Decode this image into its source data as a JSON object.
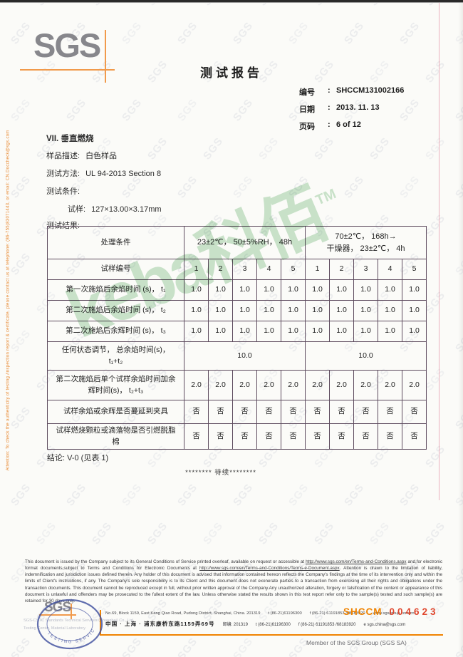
{
  "colors": {
    "sgs_logo_gray": "#87878c",
    "sgs_orange": "#f19a4b",
    "accent_orange": "#f08300",
    "serial_red": "#e0462c",
    "stamp_blue": "#3c4c9c",
    "brand_watermark_green": "#7cbe84",
    "table_border": "#5d4b5e",
    "side_note_orange": "#e88830"
  },
  "watermark": {
    "pattern": "SGS",
    "brand": "keba科佰",
    "tm": "TM"
  },
  "side_note": "Attention: To check the authenticity of testing /inspection report & certificate, please contact us at telephone: (86-755)83071443, or email: CN.Doccheck@sgs.com",
  "header": {
    "logo": "SGS",
    "title": "测试报告",
    "meta": [
      {
        "label": "编号",
        "sep": ":",
        "value": "SHCCM131002166"
      },
      {
        "label": "日期",
        "sep": ":",
        "value": "2013. 11. 13"
      },
      {
        "label": "页码",
        "sep": ":",
        "value": "6 of 12"
      }
    ]
  },
  "section": {
    "heading": "VII.  垂直燃烧",
    "lines": [
      {
        "label": "样品描述:",
        "value": "白色样品",
        "indent": false
      },
      {
        "label": "测试方法:",
        "value": "UL 94-2013 Section 8",
        "indent": false
      },
      {
        "label": "测试条件:",
        "value": "",
        "indent": false
      },
      {
        "label": "试样:",
        "value": "127×13.00×3.17mm",
        "indent": true
      },
      {
        "label": "测试结果:",
        "value": "",
        "indent": false
      }
    ]
  },
  "table": {
    "condition_header": "处理条件",
    "condition_a": "23±2℃， 50±5%RH， 48h",
    "condition_b": "70±2℃， 168h→\n干燥器， 23±2℃， 4h",
    "specimen_header": "试样编号",
    "specimen_numbers": [
      "1",
      "2",
      "3",
      "4",
      "5",
      "1",
      "2",
      "3",
      "4",
      "5"
    ],
    "rows": [
      {
        "label": "第一次施焰后余焰时间 (s)， t₁",
        "cells": [
          "1.0",
          "1.0",
          "1.0",
          "1.0",
          "1.0",
          "1.0",
          "1.0",
          "1.0",
          "1.0",
          "1.0"
        ],
        "colspan": 1
      },
      {
        "label": "第二次施焰后余焰时间 (s)， t₂",
        "cells": [
          "1.0",
          "1.0",
          "1.0",
          "1.0",
          "1.0",
          "1.0",
          "1.0",
          "1.0",
          "1.0",
          "1.0"
        ],
        "colspan": 1
      },
      {
        "label": "第二次施焰后余辉时间 (s)， t₃",
        "cells": [
          "1.0",
          "1.0",
          "1.0",
          "1.0",
          "1.0",
          "1.0",
          "1.0",
          "1.0",
          "1.0",
          "1.0"
        ],
        "colspan": 1
      },
      {
        "label": "任何状态调节， 总余焰时间(s)，\nt₁+t₂",
        "cells": [
          "10.0",
          "10.0"
        ],
        "colspan": 5
      },
      {
        "label": "第二次施焰后单个试样余焰时间加余\n辉时间(s)，  t₂+t₃",
        "cells": [
          "2.0",
          "2.0",
          "2.0",
          "2.0",
          "2.0",
          "2.0",
          "2.0",
          "2.0",
          "2.0",
          "2.0"
        ],
        "colspan": 1
      },
      {
        "label": "试样余焰或余辉是否蔓延到夹具",
        "cells": [
          "否",
          "否",
          "否",
          "否",
          "否",
          "否",
          "否",
          "否",
          "否",
          "否"
        ],
        "colspan": 1
      },
      {
        "label": "试样燃烧颗粒或滴落物是否引燃脱脂\n棉",
        "cells": [
          "否",
          "否",
          "否",
          "否",
          "否",
          "否",
          "否",
          "否",
          "否",
          "否"
        ],
        "colspan": 1
      }
    ]
  },
  "conclusion": "结论: V-0 (见表 1)",
  "to_be_continued": "******** 待续********",
  "footer": {
    "legal_segments": [
      {
        "t": "This document is issued by the Company subject to its General Conditions of Service printed overleaf, available on request or accessible at ",
        "u": false
      },
      {
        "t": "http://www.sgs.com/en/Terms-and-Conditions.aspx",
        "u": true
      },
      {
        "t": " and,for electronic format documents,subject to Terms and Conditions for Electronic Documents at ",
        "u": false
      },
      {
        "t": "http://www.sgs.com/en/Terms-and-Conditions/Terms-e-Document.aspx",
        "u": true
      },
      {
        "t": ". Attention is drawn to the limitation of liability, indemnification and jurisdiction issues defined therein. Any holder of this document is advised that information contained hereon reflects the Company's findings at the time of its intervention only and within the limits of Client's instructions, if any.  The Company's sole responsibility is to its Client and this document does not exonerate parties to a transaction from exercising all their rights and obligations under the transaction documents. This document cannot be reproduced except in full, without prior written approval of the Company.Any unauthorized alteration, forgery or falsification of the content or appearance of this document is unlawful and offenders may be prosecuted to the fullest extent of the law. Unless otherwise stated the results shown in this test report refer only to the sample(s) tested and such sample(s) are retained for 30 days only.",
        "u": false
      }
    ],
    "logo_small": "SGS",
    "stamp_ring": "TESTING SERVICES",
    "company_line1": "SGS-CSTC Standards Technical Services (Shanghai) Co., Ltd.",
    "company_line2": "Testing Center, Material Laboratory",
    "address_en": "No.69, Block 1159, East Kang Qiao Road, Pudong District, Shanghai, China. 201319",
    "tel1": "t (86-21)61196300",
    "fax1": "f (86-21) 61191853 /68183920",
    "web": "www.sgsgroup.com.cn",
    "address_cn": "中国 · 上海 · 浦东康桥东路1159弄69号",
    "postcode": "邮编: 201319",
    "tel2": "t (86-21)61196300",
    "fax2": "f (86-21) 61191853 /68183920",
    "email": "e  sgs.china@sgs.com",
    "serial_prefix": "SHCCM",
    "serial_number": "004623",
    "member": "Member of the SGS Group (SGS SA)"
  }
}
